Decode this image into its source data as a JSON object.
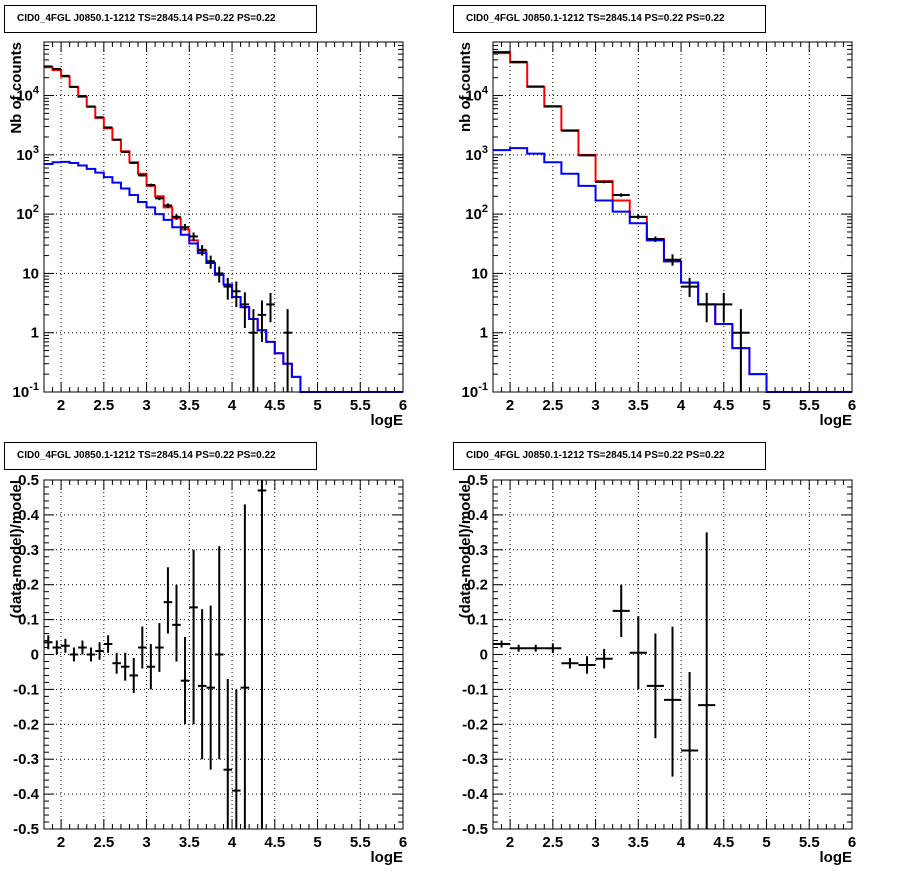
{
  "colors": {
    "data": "#000000",
    "total_model": "#ff0000",
    "component_model": "#0000ff",
    "grid": "#000000"
  },
  "chart_data": [
    {
      "type": "line",
      "title": "CID0_4FGL J0850.1-1212 TS=2845.14 PS=0.22 PS=0.22",
      "xlabel": "logE",
      "ylabel": "Nb of counts",
      "log_y": true,
      "grid": true,
      "xlim": [
        1.8,
        6.0
      ],
      "ylim": [
        0.1,
        80000
      ],
      "x_ticks": [
        "2",
        "2.5",
        "3",
        "3.5",
        "4",
        "4.5",
        "5",
        "5.5",
        "6"
      ],
      "y_ticks": [
        "10^-1",
        "1",
        "10",
        "10^2",
        "10^3",
        "10^4"
      ],
      "bin_edges": [
        1.8,
        1.9,
        2.0,
        2.1,
        2.2,
        2.3,
        2.4,
        2.5,
        2.6,
        2.7,
        2.8,
        2.9,
        3.0,
        3.1,
        3.2,
        3.3,
        3.4,
        3.5,
        3.6,
        3.7,
        3.8,
        3.9,
        4.0,
        4.1,
        4.2,
        4.3,
        4.4,
        4.5,
        4.6,
        4.7,
        4.8,
        4.9,
        5.0,
        5.1,
        5.2,
        5.3,
        5.4,
        5.5,
        5.6,
        5.7,
        5.8,
        5.9,
        6.0
      ],
      "series": [
        {
          "values": [
            30000,
            27000,
            21000,
            14000,
            9500,
            6500,
            4200,
            2800,
            1800,
            1150,
            750,
            480,
            300,
            200,
            130,
            85,
            55,
            36,
            24,
            15,
            9.5,
            6.5,
            4.0,
            2.7,
            1.7,
            1.1,
            0.7,
            0.45,
            0.3,
            0.18,
            0.1,
            0.1,
            0.1,
            0.1,
            0.1,
            0.1,
            0.1,
            0.1,
            0.1,
            0.1,
            0.1,
            0.1
          ]
        },
        {
          "values": [
            700,
            750,
            760,
            730,
            660,
            580,
            500,
            420,
            340,
            270,
            210,
            160,
            130,
            100,
            80,
            60,
            45,
            32,
            22,
            15,
            9.5,
            6.5,
            4.0,
            2.7,
            1.7,
            1.1,
            0.7,
            0.45,
            0.3,
            0.18,
            0.1,
            0.1,
            0.1,
            0.1,
            0.1,
            0.1,
            0.1,
            0.1,
            0.1,
            0.1,
            0.1,
            0.1
          ]
        }
      ],
      "points": {
        "x": [
          1.85,
          1.95,
          2.05,
          2.15,
          2.25,
          2.35,
          2.45,
          2.55,
          2.65,
          2.75,
          2.85,
          2.95,
          3.05,
          3.15,
          3.25,
          3.35,
          3.45,
          3.55,
          3.65,
          3.75,
          3.85,
          3.95,
          4.05,
          4.15,
          4.25,
          4.35,
          4.45,
          4.55,
          4.65
        ],
        "y": [
          31000,
          28000,
          21500,
          14000,
          9800,
          6500,
          4300,
          2900,
          1800,
          1120,
          730,
          450,
          310,
          185,
          140,
          90,
          60,
          42,
          25,
          16,
          10,
          6,
          5,
          3,
          1,
          2,
          3,
          0,
          1
        ],
        "ylo": [
          30800,
          27800,
          21300,
          13880,
          9700,
          6420,
          4230,
          2850,
          1760,
          1090,
          705,
          430,
          293,
          172,
          128,
          80,
          53,
          35,
          20,
          12,
          7,
          3.6,
          2.7,
          1.2,
          0.1,
          0.7,
          1.5,
          0,
          0.1
        ],
        "yhi": [
          31200,
          28200,
          21700,
          14120,
          9900,
          6580,
          4370,
          2950,
          1840,
          1150,
          755,
          470,
          327,
          198,
          152,
          100,
          68,
          49,
          30,
          20,
          13,
          8.4,
          7.3,
          4.8,
          2.5,
          3.5,
          4.7,
          0,
          2.5
        ]
      }
    },
    {
      "type": "line",
      "title": "CID0_4FGL J0850.1-1212 TS=2845.14 PS=0.22 PS=0.22",
      "xlabel": "logE",
      "ylabel": "nb of counts",
      "log_y": true,
      "grid": true,
      "xlim": [
        1.8,
        6.0
      ],
      "ylim": [
        0.1,
        80000
      ],
      "x_ticks": [
        "2",
        "2.5",
        "3",
        "3.5",
        "4",
        "4.5",
        "5",
        "5.5",
        "6"
      ],
      "y_ticks": [
        "10^-1",
        "1",
        "10",
        "10^2",
        "10^3",
        "10^4"
      ],
      "bin_edges": [
        1.8,
        2.0,
        2.2,
        2.4,
        2.6,
        2.8,
        3.0,
        3.2,
        3.4,
        3.6,
        3.8,
        4.0,
        4.2,
        4.4,
        4.6,
        4.8,
        5.0,
        5.2,
        5.4,
        5.6,
        5.8,
        6.0
      ],
      "series": [
        {
          "values": [
            52000,
            36000,
            14000,
            6500,
            2600,
            1000,
            360,
            170,
            90,
            38,
            16,
            7,
            3,
            1.4,
            0.55,
            0.2,
            0.1,
            0.1,
            0.1,
            0.1,
            0.1
          ]
        },
        {
          "values": [
            1200,
            1300,
            1050,
            750,
            480,
            300,
            170,
            110,
            70,
            36,
            16,
            7,
            3,
            1.4,
            0.55,
            0.2,
            0.1,
            0.1,
            0.1,
            0.1,
            0.1
          ]
        }
      ],
      "points": {
        "x": [
          1.9,
          2.1,
          2.3,
          2.5,
          2.7,
          2.9,
          3.1,
          3.3,
          3.5,
          3.7,
          3.9,
          4.1,
          4.3,
          4.5,
          4.7
        ],
        "y": [
          54000,
          37000,
          14200,
          6600,
          2550,
          980,
          350,
          210,
          90,
          38,
          17,
          6,
          3,
          3,
          1
        ],
        "ylo": [
          53800,
          36800,
          14080,
          6520,
          2500,
          950,
          332,
          196,
          82,
          34,
          13.5,
          4,
          1.5,
          1.5,
          0.1
        ],
        "yhi": [
          54200,
          37200,
          14320,
          6680,
          2600,
          1010,
          368,
          224,
          98,
          42,
          21,
          8.4,
          4.7,
          4.7,
          2.5
        ]
      }
    },
    {
      "type": "scatter",
      "title": "CID0_4FGL J0850.1-1212 TS=2845.14 PS=0.22 PS=0.22",
      "xlabel": "logE",
      "ylabel": "(data-model)/model",
      "grid": true,
      "xlim": [
        1.8,
        6.0
      ],
      "ylim": [
        -0.5,
        0.5
      ],
      "x_ticks": [
        "2",
        "2.5",
        "3",
        "3.5",
        "4",
        "4.5",
        "5",
        "5.5",
        "6"
      ],
      "y_ticks": [
        "-0.5",
        "-0.4",
        "-0.3",
        "-0.2",
        "-0.1",
        "0",
        "0.1",
        "0.2",
        "0.3",
        "0.4",
        "0.5"
      ],
      "points": {
        "x": [
          1.85,
          1.95,
          2.05,
          2.15,
          2.25,
          2.35,
          2.45,
          2.55,
          2.65,
          2.75,
          2.85,
          2.95,
          3.05,
          3.15,
          3.25,
          3.35,
          3.45,
          3.55,
          3.65,
          3.75,
          3.85,
          3.95,
          4.05,
          4.15,
          4.35
        ],
        "y": [
          0.035,
          0.02,
          0.025,
          0.0,
          0.02,
          0.0,
          0.01,
          0.03,
          -0.025,
          -0.035,
          -0.06,
          0.02,
          -0.035,
          0.02,
          0.15,
          0.085,
          -0.075,
          0.135,
          -0.09,
          -0.095,
          0.0,
          -0.33,
          -0.39,
          -0.095,
          0.47
        ],
        "ylo": [
          0.015,
          0.0,
          0.005,
          -0.02,
          0.0,
          -0.02,
          -0.015,
          0.005,
          -0.055,
          -0.075,
          -0.11,
          -0.04,
          -0.1,
          -0.05,
          0.06,
          -0.02,
          -0.2,
          -0.2,
          -0.3,
          -0.33,
          -0.3,
          -0.5,
          -0.5,
          -0.5,
          -0.5
        ],
        "yhi": [
          0.055,
          0.04,
          0.045,
          0.02,
          0.04,
          0.02,
          0.035,
          0.055,
          0.005,
          0.005,
          -0.01,
          0.08,
          0.03,
          0.09,
          0.25,
          0.2,
          0.05,
          0.3,
          0.13,
          0.14,
          0.31,
          -0.07,
          -0.1,
          0.43,
          0.5
        ]
      }
    },
    {
      "type": "scatter",
      "title": "CID0_4FGL J0850.1-1212 TS=2845.14 PS=0.22 PS=0.22",
      "xlabel": "logE",
      "ylabel": "(data-model)/model",
      "grid": true,
      "xlim": [
        1.8,
        6.0
      ],
      "ylim": [
        -0.5,
        0.5
      ],
      "x_ticks": [
        "2",
        "2.5",
        "3",
        "3.5",
        "4",
        "4.5",
        "5",
        "5.5",
        "6"
      ],
      "y_ticks": [
        "-0.5",
        "-0.4",
        "-0.3",
        "-0.2",
        "-0.1",
        "0",
        "0.1",
        "0.2",
        "0.3",
        "0.4",
        "0.5"
      ],
      "points": {
        "x": [
          1.9,
          2.1,
          2.3,
          2.5,
          2.7,
          2.9,
          3.1,
          3.3,
          3.5,
          3.7,
          3.9,
          4.1,
          4.3
        ],
        "y": [
          0.03,
          0.018,
          0.018,
          0.018,
          -0.025,
          -0.03,
          -0.012,
          0.125,
          0.005,
          -0.09,
          -0.13,
          -0.275,
          -0.145
        ],
        "ylo": [
          0.02,
          0.008,
          0.008,
          0.004,
          -0.04,
          -0.055,
          -0.04,
          0.05,
          -0.1,
          -0.24,
          -0.35,
          -0.5,
          -0.5
        ],
        "yhi": [
          0.04,
          0.028,
          0.028,
          0.032,
          -0.01,
          -0.005,
          0.016,
          0.2,
          0.11,
          0.06,
          0.08,
          -0.05,
          0.35
        ]
      }
    }
  ]
}
